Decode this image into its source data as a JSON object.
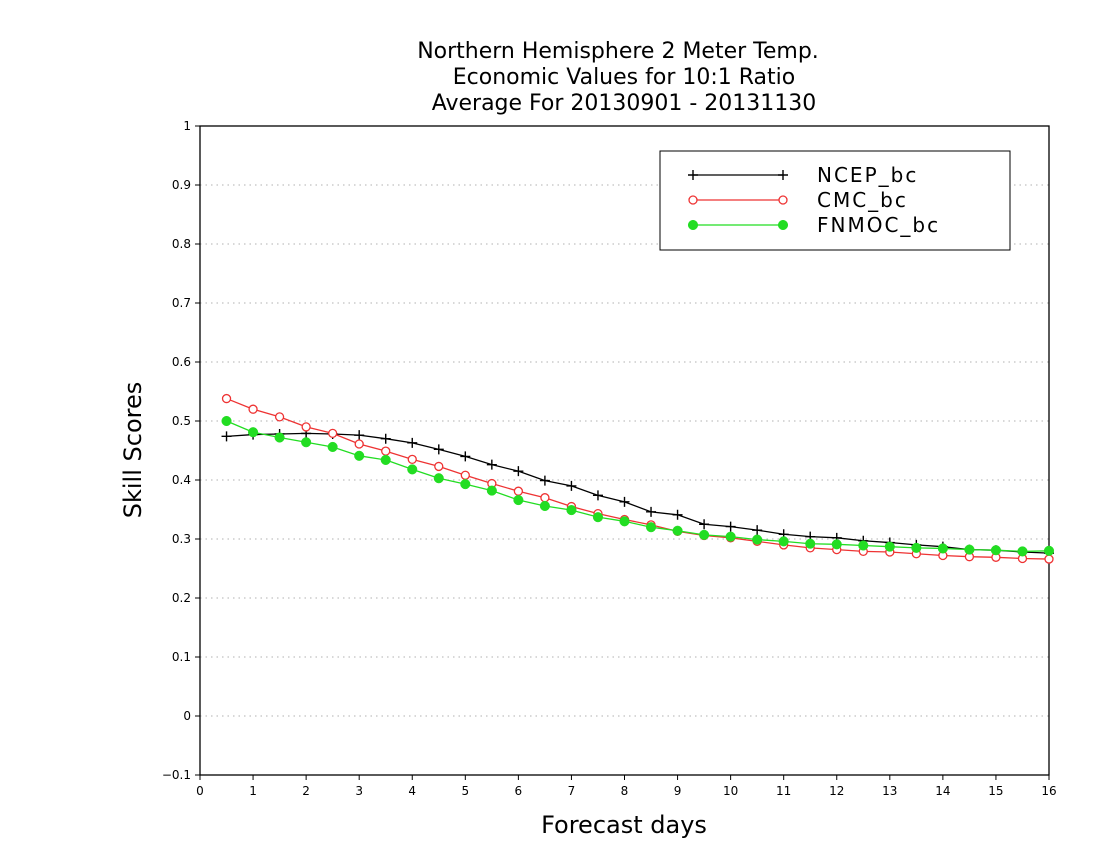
{
  "chart_data": {
    "type": "line",
    "title_lines": [
      "Northern Hemisphere 2 Meter Temp.",
      "Economic Values for 10:1 Ratio",
      "Average For 20130901 - 20131130"
    ],
    "xlabel": "Forecast days",
    "ylabel": "Skill Scores",
    "xlim": [
      0,
      16
    ],
    "ylim": [
      -0.1,
      1
    ],
    "xticks": [
      "0",
      "1",
      "2",
      "3",
      "4",
      "5",
      "6",
      "7",
      "8",
      "9",
      "10",
      "11",
      "12",
      "13",
      "14",
      "15",
      "16"
    ],
    "yticks": [
      "-0.1",
      "0",
      "0.1",
      "0.2",
      "0.3",
      "0.4",
      "0.5",
      "0.6",
      "0.7",
      "0.8",
      "0.9",
      "1"
    ],
    "grid": true,
    "legend_position": "top-right",
    "x": [
      0.5,
      1,
      1.5,
      2,
      2.5,
      3,
      3.5,
      4,
      4.5,
      5,
      5.5,
      6,
      6.5,
      7,
      7.5,
      8,
      8.5,
      9,
      9.5,
      10,
      10.5,
      11,
      11.5,
      12,
      12.5,
      13,
      13.5,
      14,
      14.5,
      15,
      15.5,
      16
    ],
    "series": [
      {
        "name": "NCEP_bc",
        "color": "#000000",
        "marker": "plus",
        "values": [
          0.474,
          0.477,
          0.478,
          0.479,
          0.478,
          0.476,
          0.47,
          0.463,
          0.452,
          0.44,
          0.426,
          0.415,
          0.399,
          0.39,
          0.374,
          0.363,
          0.346,
          0.341,
          0.325,
          0.321,
          0.315,
          0.308,
          0.304,
          0.302,
          0.297,
          0.294,
          0.29,
          0.287,
          0.282,
          0.281,
          0.278,
          0.276
        ]
      },
      {
        "name": "CMC_bc",
        "color": "#ee3333",
        "marker": "open-circle",
        "values": [
          0.538,
          0.52,
          0.507,
          0.49,
          0.479,
          0.461,
          0.449,
          0.435,
          0.423,
          0.408,
          0.394,
          0.381,
          0.37,
          0.355,
          0.343,
          0.333,
          0.324,
          0.313,
          0.306,
          0.302,
          0.296,
          0.29,
          0.285,
          0.282,
          0.279,
          0.278,
          0.275,
          0.272,
          0.27,
          0.269,
          0.267,
          0.266
        ]
      },
      {
        "name": "FNMOC_bc",
        "color": "#22dd22",
        "marker": "filled-circle",
        "values": [
          0.5,
          0.481,
          0.472,
          0.464,
          0.456,
          0.441,
          0.434,
          0.418,
          0.403,
          0.393,
          0.382,
          0.366,
          0.356,
          0.349,
          0.337,
          0.33,
          0.32,
          0.314,
          0.307,
          0.304,
          0.299,
          0.296,
          0.292,
          0.291,
          0.289,
          0.287,
          0.285,
          0.284,
          0.282,
          0.281,
          0.279,
          0.28
        ]
      }
    ]
  }
}
